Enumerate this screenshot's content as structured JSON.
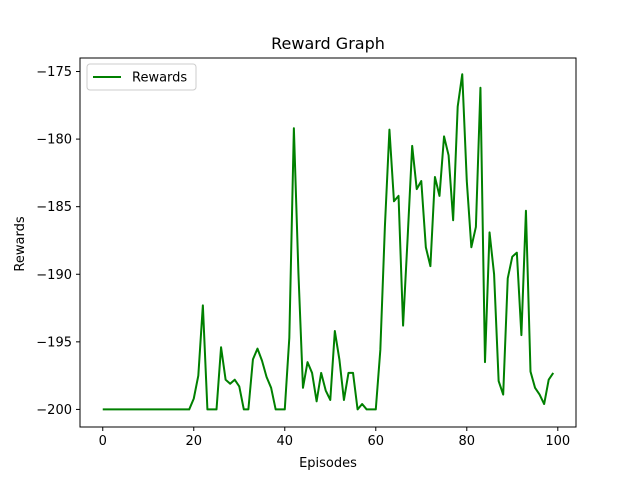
{
  "chart_data": {
    "type": "line",
    "title": "Reward Graph",
    "xlabel": "Episodes",
    "ylabel": "Rewards",
    "xlim": [
      -5,
      104
    ],
    "ylim": [
      -201.3,
      -174.0
    ],
    "xticks": [
      0,
      20,
      40,
      60,
      80,
      100
    ],
    "yticks": [
      -200,
      -195,
      -190,
      -185,
      -180,
      -175
    ],
    "xtick_labels": [
      "0",
      "20",
      "40",
      "60",
      "80",
      "100"
    ],
    "ytick_labels": [
      "−200",
      "−195",
      "−190",
      "−185",
      "−180",
      "−175"
    ],
    "legend": {
      "position": "top-left"
    },
    "series": [
      {
        "name": "Rewards",
        "color": "#008000",
        "x": [
          0,
          1,
          2,
          3,
          4,
          5,
          6,
          7,
          8,
          9,
          10,
          11,
          12,
          13,
          14,
          15,
          16,
          17,
          18,
          19,
          20,
          21,
          22,
          23,
          24,
          25,
          26,
          27,
          28,
          29,
          30,
          31,
          32,
          33,
          34,
          35,
          36,
          37,
          38,
          39,
          40,
          41,
          42,
          43,
          44,
          45,
          46,
          47,
          48,
          49,
          50,
          51,
          52,
          53,
          54,
          55,
          56,
          57,
          58,
          59,
          60,
          61,
          62,
          63,
          64,
          65,
          66,
          67,
          68,
          69,
          70,
          71,
          72,
          73,
          74,
          75,
          76,
          77,
          78,
          79,
          80,
          81,
          82,
          83,
          84,
          85,
          86,
          87,
          88,
          89,
          90,
          91,
          92,
          93,
          94,
          95,
          96,
          97,
          98,
          99
        ],
        "values": [
          -200,
          -200,
          -200,
          -200,
          -200,
          -200,
          -200,
          -200,
          -200,
          -200,
          -200,
          -200,
          -200,
          -200,
          -200,
          -200,
          -200,
          -200,
          -200,
          -200,
          -199.2,
          -197.5,
          -192.3,
          -200,
          -200,
          -200,
          -195.4,
          -197.8,
          -198.1,
          -197.8,
          -198.3,
          -200,
          -200,
          -196.3,
          -195.5,
          -196.4,
          -197.6,
          -198.4,
          -200,
          -200,
          -200,
          -194.7,
          -179.2,
          -189.9,
          -198.4,
          -196.5,
          -197.3,
          -199.4,
          -197.3,
          -198.6,
          -199.3,
          -194.2,
          -196.3,
          -199.3,
          -197.3,
          -197.3,
          -200,
          -199.6,
          -200,
          -200,
          -200,
          -195.6,
          -186.5,
          -179.3,
          -184.6,
          -184.2,
          -193.8,
          -187.3,
          -180.5,
          -183.7,
          -183.1,
          -188,
          -189.4,
          -182.8,
          -184.2,
          -179.8,
          -181.2,
          -186,
          -177.6,
          -175.2,
          -183.1,
          -188,
          -186.5,
          -176.2,
          -196.5,
          -186.9,
          -190,
          -197.9,
          -198.9,
          -190.3,
          -188.7,
          -188.4,
          -194.5,
          -185.3,
          -197.2,
          -198.4,
          -198.9,
          -199.6,
          -197.8,
          -197.3
        ]
      }
    ]
  }
}
